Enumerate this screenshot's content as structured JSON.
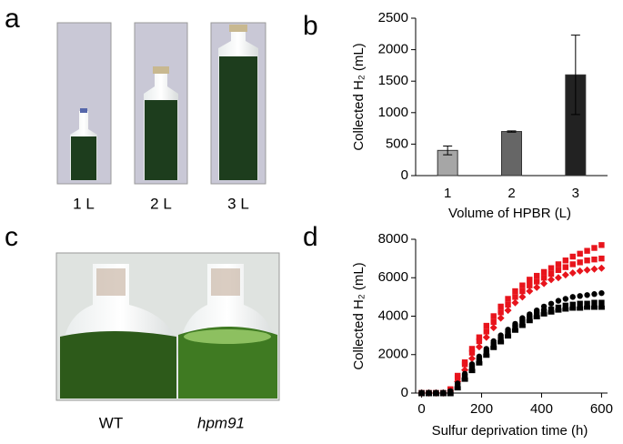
{
  "panels": {
    "a": "a",
    "b": "b",
    "c": "c",
    "d": "d"
  },
  "photo_a": {
    "captions": [
      "1 L",
      "2 L",
      "3 L"
    ]
  },
  "photo_c": {
    "captions": [
      "WT",
      "hpm91"
    ]
  },
  "chart_data": [
    {
      "type": "bar",
      "y_label": "Collected H₂ (mL)",
      "x_label": "Volume of HPBR (L)",
      "categories": [
        "1",
        "2",
        "3"
      ],
      "values": [
        400,
        700,
        1600
      ],
      "errors": [
        70,
        10,
        630
      ],
      "colors": [
        "#a6a6a6",
        "#666666",
        "#222222"
      ],
      "ylim": [
        0,
        2500
      ],
      "yticks": [
        0,
        500,
        1000,
        1500,
        2000,
        2500
      ],
      "grid": false
    },
    {
      "type": "scatter",
      "y_label": "Collected H₂ (mL)",
      "x_label": "Sulfur deprivation time (h)",
      "x": [
        0,
        24,
        48,
        72,
        96,
        120,
        144,
        168,
        192,
        216,
        240,
        264,
        288,
        312,
        336,
        360,
        384,
        408,
        432,
        456,
        480,
        504,
        528,
        552,
        576,
        600
      ],
      "series": [
        {
          "color": "#e8141c",
          "marker": "square",
          "values": [
            0,
            0,
            0,
            0,
            200,
            900,
            1600,
            2300,
            2900,
            3500,
            4000,
            4500,
            4900,
            5300,
            5600,
            5900,
            6100,
            6300,
            6500,
            6700,
            6900,
            7100,
            7250,
            7400,
            7550,
            7700
          ]
        },
        {
          "color": "#e8141c",
          "marker": "square",
          "values": [
            0,
            0,
            0,
            0,
            150,
            800,
            1500,
            2100,
            2700,
            3200,
            3700,
            4200,
            4600,
            5000,
            5300,
            5600,
            5800,
            6000,
            6200,
            6400,
            6550,
            6700,
            6800,
            6900,
            6950,
            7000
          ]
        },
        {
          "color": "#e8141c",
          "marker": "diamond",
          "values": [
            0,
            0,
            0,
            0,
            100,
            600,
            1200,
            1800,
            2400,
            2900,
            3400,
            3900,
            4300,
            4700,
            5000,
            5300,
            5500,
            5700,
            5900,
            6000,
            6150,
            6250,
            6350,
            6400,
            6450,
            6500
          ]
        },
        {
          "color": "#000000",
          "marker": "circle",
          "values": [
            0,
            0,
            0,
            0,
            100,
            500,
            1000,
            1500,
            1900,
            2300,
            2700,
            3000,
            3300,
            3600,
            3900,
            4100,
            4300,
            4500,
            4650,
            4800,
            4900,
            5000,
            5050,
            5100,
            5150,
            5200
          ]
        },
        {
          "color": "#000000",
          "marker": "square",
          "values": [
            0,
            0,
            0,
            0,
            50,
            400,
            850,
            1300,
            1700,
            2100,
            2500,
            2800,
            3100,
            3400,
            3700,
            3900,
            4100,
            4250,
            4350,
            4450,
            4550,
            4600,
            4650,
            4650,
            4700,
            4700
          ]
        },
        {
          "color": "#000000",
          "marker": "pentagon",
          "values": [
            0,
            0,
            0,
            0,
            0,
            300,
            750,
            1200,
            1600,
            2000,
            2400,
            2700,
            3000,
            3300,
            3550,
            3800,
            4000,
            4150,
            4250,
            4350,
            4400,
            4450,
            4450,
            4500,
            4500,
            4500
          ]
        }
      ],
      "xlim": [
        -20,
        620
      ],
      "xticks": [
        0,
        200,
        400,
        600
      ],
      "ylim": [
        0,
        8000
      ],
      "yticks": [
        0,
        2000,
        4000,
        6000,
        8000
      ],
      "grid": false
    }
  ]
}
